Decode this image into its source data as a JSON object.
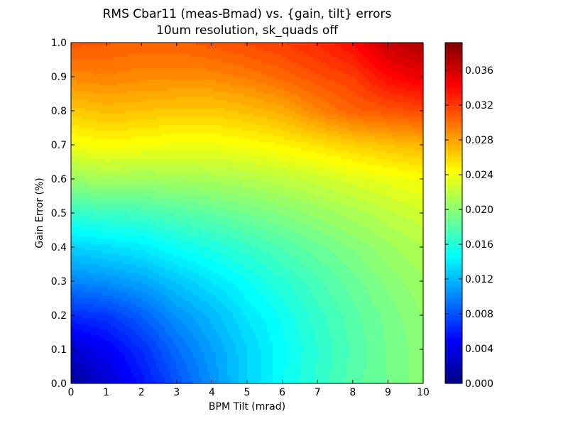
{
  "chart_data": {
    "type": "heatmap",
    "title": "RMS Cbar11 (meas-Bmad) vs. {gain, tilt} errors",
    "subtitle": "10um resolution, sk_quads off",
    "xlabel": "BPM Tilt (mrad)",
    "ylabel": "Gain Error (%)",
    "xlim": [
      0,
      10
    ],
    "ylim": [
      0,
      1
    ],
    "x": [
      0,
      1,
      2,
      3,
      4,
      5,
      6,
      7,
      8,
      9,
      10
    ],
    "y": [
      0.0,
      0.1,
      0.2,
      0.3,
      0.4,
      0.5,
      0.6,
      0.7,
      0.8,
      0.9,
      1.0
    ],
    "z": [
      [
        0.001,
        0.003,
        0.0055,
        0.008,
        0.0105,
        0.013,
        0.015,
        0.0165,
        0.018,
        0.019,
        0.02
      ],
      [
        0.003,
        0.0045,
        0.0065,
        0.009,
        0.011,
        0.013,
        0.0148,
        0.0163,
        0.0178,
        0.019,
        0.02
      ],
      [
        0.0065,
        0.007,
        0.0085,
        0.0105,
        0.012,
        0.0138,
        0.0152,
        0.0167,
        0.018,
        0.0192,
        0.0203
      ],
      [
        0.01,
        0.0105,
        0.0112,
        0.0125,
        0.0137,
        0.015,
        0.0162,
        0.0175,
        0.0187,
        0.0198,
        0.0208
      ],
      [
        0.013,
        0.0135,
        0.014,
        0.015,
        0.0158,
        0.0167,
        0.0177,
        0.0187,
        0.0197,
        0.0207,
        0.0215
      ],
      [
        0.0165,
        0.017,
        0.0172,
        0.0178,
        0.0183,
        0.019,
        0.0197,
        0.0205,
        0.0212,
        0.022,
        0.0227
      ],
      [
        0.0205,
        0.021,
        0.0208,
        0.021,
        0.0212,
        0.0215,
        0.022,
        0.0225,
        0.0232,
        0.0238,
        0.0243
      ],
      [
        0.024,
        0.0245,
        0.0242,
        0.024,
        0.024,
        0.0243,
        0.0248,
        0.0255,
        0.0262,
        0.0268,
        0.0273
      ],
      [
        0.0265,
        0.027,
        0.0268,
        0.0265,
        0.0265,
        0.027,
        0.0277,
        0.0292,
        0.0305,
        0.031,
        0.0315
      ],
      [
        0.029,
        0.0293,
        0.029,
        0.029,
        0.029,
        0.0295,
        0.0303,
        0.0312,
        0.032,
        0.034,
        0.035
      ],
      [
        0.031,
        0.0308,
        0.0305,
        0.0305,
        0.031,
        0.0315,
        0.032,
        0.0328,
        0.034,
        0.0365,
        0.0375
      ]
    ],
    "xticks": [
      "0",
      "1",
      "2",
      "3",
      "4",
      "5",
      "6",
      "7",
      "8",
      "9",
      "10"
    ],
    "yticks": [
      "0.0",
      "0.1",
      "0.2",
      "0.3",
      "0.4",
      "0.5",
      "0.6",
      "0.7",
      "0.8",
      "0.9",
      "1.0"
    ],
    "colorbar": {
      "range": [
        0.0,
        0.0392
      ],
      "ticks": [
        "0.000",
        "0.004",
        "0.008",
        "0.012",
        "0.016",
        "0.020",
        "0.024",
        "0.028",
        "0.032",
        "0.036"
      ],
      "colormap": "jet"
    },
    "grid": false
  }
}
